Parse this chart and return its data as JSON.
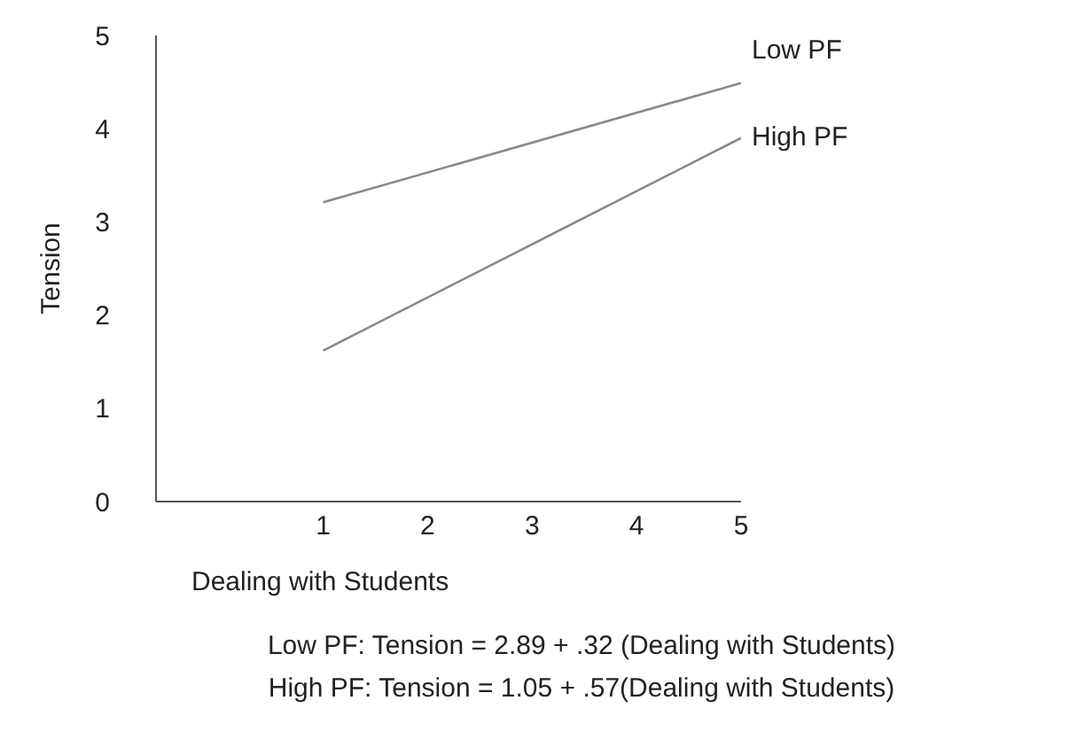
{
  "chart_data": {
    "type": "line",
    "xlabel": "Dealing with Students",
    "ylabel": "Tension",
    "x": [
      1,
      5
    ],
    "series": [
      {
        "name": "Low PF",
        "color": "#888888",
        "values": [
          3.21,
          4.49
        ]
      },
      {
        "name": "High PF",
        "color": "#888888",
        "values": [
          1.62,
          3.9
        ]
      }
    ],
    "xlim": [
      -0.6,
      5
    ],
    "xticks": [
      1,
      2,
      3,
      4,
      5
    ],
    "ylim": [
      0,
      5
    ],
    "yticks": [
      0,
      1,
      2,
      3,
      4,
      5
    ],
    "grid": false,
    "legend": false,
    "marker": "none",
    "line_style": "solid",
    "annotations": [
      "Low PF: Tension = 2.89 + .32 (Dealing with Students)",
      "High PF: Tension = 1.05 + .57(Dealing with Students)"
    ]
  }
}
